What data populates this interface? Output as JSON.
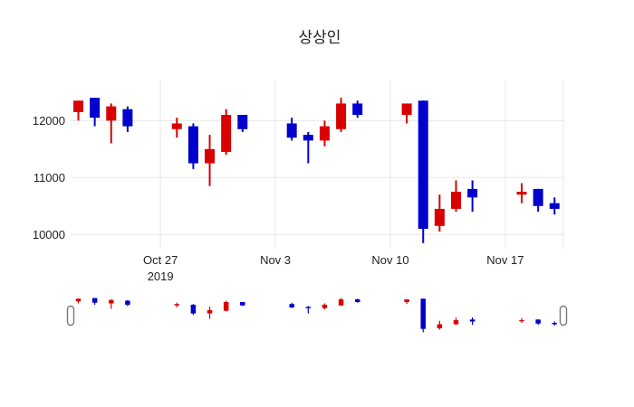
{
  "title": "상상인",
  "colors": {
    "text": "#222222",
    "grid": "#e7e7e7",
    "background": "#ffffff",
    "increasing": "#d90000",
    "decreasing": "#0000cd",
    "slider_handle_border": "#777777",
    "slider_handle_fill": "#ffffff"
  },
  "chart_data": {
    "type": "candlestick",
    "title": "상상인",
    "legend_position": "none",
    "grid": true,
    "rangeslider": true,
    "increasing_color": "#d90000",
    "decreasing_color": "#0000cd",
    "ylim": [
      9750,
      12720
    ],
    "dates": [
      "Oct 22",
      "Oct 23",
      "Oct 24",
      "Oct 25",
      "Oct 28",
      "Oct 29",
      "Oct 30",
      "Oct 31",
      "Nov 1",
      "Nov 4",
      "Nov 5",
      "Nov 6",
      "Nov 7",
      "Nov 8",
      "Nov 11",
      "Nov 12",
      "Nov 13",
      "Nov 14",
      "Nov 15",
      "Nov 18",
      "Nov 19",
      "Nov 20"
    ],
    "day_offsets": [
      0,
      1,
      2,
      3,
      6,
      7,
      8,
      9,
      10,
      13,
      14,
      15,
      16,
      17,
      20,
      21,
      22,
      23,
      24,
      27,
      28,
      29
    ],
    "open": [
      12150,
      12400,
      12000,
      12200,
      11850,
      11900,
      11250,
      11450,
      12100,
      11950,
      11750,
      11650,
      11850,
      12300,
      12100,
      12350,
      10150,
      10450,
      10800,
      10700,
      10800,
      10550
    ],
    "high": [
      12350,
      12400,
      12300,
      12250,
      12050,
      11950,
      11750,
      12200,
      12100,
      12050,
      11800,
      12000,
      12400,
      12350,
      12300,
      12350,
      10700,
      10950,
      10950,
      10900,
      10800,
      10650
    ],
    "low": [
      12000,
      11900,
      11600,
      11800,
      11700,
      11150,
      10850,
      11400,
      11800,
      11650,
      11250,
      11550,
      11800,
      12050,
      11950,
      9850,
      10050,
      10400,
      10400,
      10550,
      10400,
      10350
    ],
    "close": [
      12350,
      12050,
      12250,
      11900,
      11950,
      11250,
      11500,
      12100,
      11850,
      11700,
      11650,
      11900,
      12300,
      12100,
      12300,
      10100,
      10450,
      10750,
      10650,
      10750,
      10500,
      10450
    ],
    "y_ticks": [
      {
        "value": 10000,
        "label": "10000"
      },
      {
        "value": 11000,
        "label": "11000"
      },
      {
        "value": 12000,
        "label": "12000"
      }
    ],
    "x_ticks": [
      {
        "day": 5,
        "label": "Oct 27",
        "sublabel": "2019"
      },
      {
        "day": 12,
        "label": "Nov 3",
        "sublabel": ""
      },
      {
        "day": 19,
        "label": "Nov 10",
        "sublabel": ""
      },
      {
        "day": 26,
        "label": "Nov 17",
        "sublabel": ""
      }
    ]
  }
}
